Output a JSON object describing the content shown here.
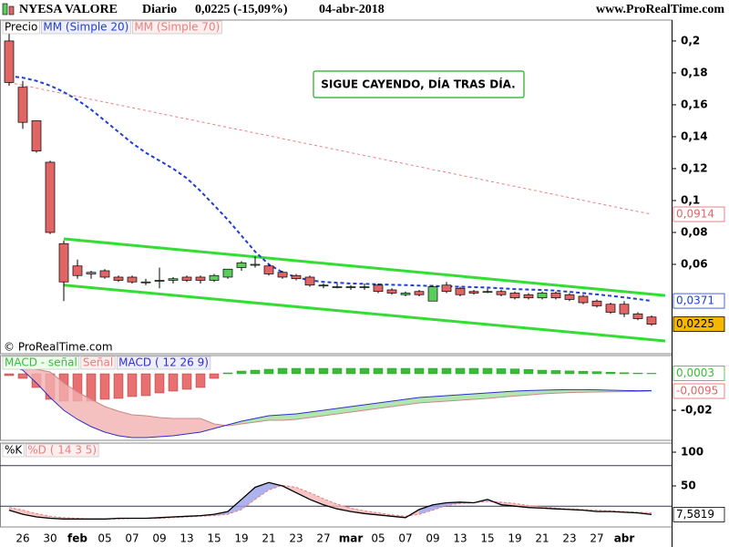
{
  "header": {
    "title": "NYESA VALORE",
    "period": "Diario",
    "quote": "0,0225 (-15,09%)",
    "date": "04-abr-2018",
    "site": "www.ProRealTime.com"
  },
  "copyright": "© ProRealTime.com",
  "chart_data": [
    {
      "type": "candlestick",
      "price_name": "Precio",
      "up_color": "#5ccc5c",
      "down_color": "#e06666",
      "categories": [
        null,
        "26",
        null,
        "30",
        null,
        "feb",
        null,
        "05",
        null,
        "07",
        null,
        "09",
        null,
        "13",
        null,
        "15",
        null,
        "19",
        null,
        "21",
        null,
        "23",
        null,
        "27",
        null,
        "mar",
        null,
        "05",
        null,
        "07",
        null,
        "09",
        null,
        "13",
        null,
        "15",
        null,
        "19",
        null,
        "21",
        null,
        "23",
        null,
        "27",
        null,
        "abr",
        null,
        null
      ],
      "ohlc": [
        [
          0.2,
          0.205,
          0.172,
          0.174
        ],
        [
          0.171,
          0.175,
          0.145,
          0.149
        ],
        [
          0.15,
          0.15,
          0.13,
          0.131
        ],
        [
          0.124,
          0.125,
          0.079,
          0.08
        ],
        [
          0.073,
          0.075,
          0.037,
          0.049
        ],
        [
          0.059,
          0.063,
          0.051,
          0.053
        ],
        [
          0.054,
          0.056,
          0.051,
          0.055
        ],
        [
          0.056,
          0.057,
          0.051,
          0.052
        ],
        [
          0.052,
          0.053,
          0.049,
          0.05
        ],
        [
          0.052,
          0.053,
          0.048,
          0.049
        ],
        [
          0.049,
          0.051,
          0.047,
          0.049
        ],
        [
          0.05,
          0.058,
          0.045,
          0.05
        ],
        [
          0.05,
          0.052,
          0.048,
          0.051
        ],
        [
          0.052,
          0.053,
          0.049,
          0.05
        ],
        [
          0.052,
          0.053,
          0.048,
          0.05
        ],
        [
          0.05,
          0.054,
          0.049,
          0.053
        ],
        [
          0.052,
          0.057,
          0.051,
          0.057
        ],
        [
          0.058,
          0.062,
          0.056,
          0.061
        ],
        [
          0.06,
          0.065,
          0.058,
          0.06
        ],
        [
          0.059,
          0.06,
          0.053,
          0.054
        ],
        [
          0.055,
          0.056,
          0.051,
          0.052
        ],
        [
          0.053,
          0.054,
          0.05,
          0.051
        ],
        [
          0.052,
          0.053,
          0.046,
          0.047
        ],
        [
          0.047,
          0.048,
          0.045,
          0.047
        ],
        [
          0.046,
          0.048,
          0.045,
          0.046
        ],
        [
          0.046,
          0.047,
          0.044,
          0.046
        ],
        [
          0.046,
          0.048,
          0.044,
          0.046
        ],
        [
          0.047,
          0.048,
          0.042,
          0.043
        ],
        [
          0.044,
          0.045,
          0.041,
          0.042
        ],
        [
          0.041,
          0.043,
          0.04,
          0.042
        ],
        [
          0.043,
          0.044,
          0.04,
          0.041
        ],
        [
          0.037,
          0.047,
          0.037,
          0.046
        ],
        [
          0.047,
          0.049,
          0.042,
          0.043
        ],
        [
          0.045,
          0.046,
          0.04,
          0.041
        ],
        [
          0.043,
          0.044,
          0.041,
          0.042
        ],
        [
          0.043,
          0.045,
          0.042,
          0.043
        ],
        [
          0.043,
          0.044,
          0.04,
          0.041
        ],
        [
          0.042,
          0.043,
          0.038,
          0.039
        ],
        [
          0.041,
          0.042,
          0.038,
          0.039
        ],
        [
          0.039,
          0.043,
          0.038,
          0.042
        ],
        [
          0.042,
          0.043,
          0.038,
          0.039
        ],
        [
          0.041,
          0.042,
          0.037,
          0.038
        ],
        [
          0.04,
          0.041,
          0.035,
          0.036
        ],
        [
          0.037,
          0.038,
          0.033,
          0.034
        ],
        [
          0.035,
          0.036,
          0.029,
          0.03
        ],
        [
          0.035,
          0.037,
          0.027,
          0.029
        ],
        [
          0.029,
          0.03,
          0.025,
          0.026
        ],
        [
          0.027,
          0.028,
          0.0215,
          0.0225
        ]
      ],
      "series": [
        {
          "name": "MM (Simple 20)",
          "color": "#1f3fd0",
          "values": [
            0.178,
            0.177,
            0.175,
            0.172,
            0.168,
            0.163,
            0.157,
            0.15,
            0.143,
            0.136,
            0.13,
            0.125,
            0.12,
            0.114,
            0.106,
            0.097,
            0.088,
            0.078,
            0.068,
            0.06,
            0.055,
            0.052,
            0.05,
            0.049,
            0.0485,
            0.048,
            0.0478,
            0.0475,
            0.0472,
            0.047,
            0.0467,
            0.0465,
            0.0462,
            0.046,
            0.0457,
            0.0455,
            0.045,
            0.0445,
            0.0442,
            0.044,
            0.0435,
            0.0428,
            0.042,
            0.0412,
            0.0403,
            0.0393,
            0.0383,
            0.0371
          ]
        },
        {
          "name": "MM (Simple 70)",
          "color": "#e88080",
          "values": [
            0.174,
            0.1722,
            0.1705,
            0.1687,
            0.167,
            0.1652,
            0.1634,
            0.1617,
            0.1599,
            0.1582,
            0.1564,
            0.1546,
            0.1529,
            0.1511,
            0.1494,
            0.1476,
            0.1458,
            0.1441,
            0.1423,
            0.1406,
            0.1388,
            0.137,
            0.1353,
            0.1335,
            0.1318,
            0.13,
            0.1282,
            0.1265,
            0.1247,
            0.123,
            0.1212,
            0.1194,
            0.1177,
            0.1159,
            0.1142,
            0.1124,
            0.1106,
            0.1089,
            0.1071,
            0.1054,
            0.1036,
            0.1018,
            0.1001,
            0.0983,
            0.0966,
            0.0948,
            0.0931,
            0.0914
          ]
        }
      ],
      "trendlines": [
        {
          "color": "#33dd33",
          "x": [
            4,
            48
          ],
          "values": [
            0.076,
            0.0405
          ]
        },
        {
          "color": "#33dd33",
          "x": [
            4,
            48
          ],
          "values": [
            0.047,
            0.012
          ]
        }
      ],
      "annotation": "SIGUE CAYENDO, DÍA TRAS DÍA.",
      "ylim": [
        0.004,
        0.2131
      ],
      "yticks": [
        {
          "value": 0.2,
          "label": "0,2"
        },
        {
          "value": 0.18,
          "label": "0,18"
        },
        {
          "value": 0.16,
          "label": "0,16"
        },
        {
          "value": 0.14,
          "label": "0,14"
        },
        {
          "value": 0.12,
          "label": "0,12"
        },
        {
          "value": 0.1,
          "label": "0,1"
        },
        {
          "value": 0.08,
          "label": "0,08"
        },
        {
          "value": 0.06,
          "label": "0,06"
        }
      ],
      "price_tags": [
        {
          "value": 0.0914,
          "label": "0,0914",
          "color": "#e06666",
          "bg": "#ffffff"
        },
        {
          "value": 0.0371,
          "label": "0,0371",
          "color": "#1f3fd0",
          "bg": "#ffffff"
        },
        {
          "value": 0.0225,
          "label": "0,0225",
          "color": "#000000",
          "bg": "#f5b800"
        }
      ]
    },
    {
      "type": "macd",
      "series": [
        {
          "name": "MACD - señal",
          "color": "#3cb83c",
          "neg_color": "#e87070",
          "values": [
            -0.001,
            -0.0025,
            -0.0075,
            -0.014,
            -0.015,
            -0.015,
            -0.015,
            -0.014,
            -0.0135,
            -0.0125,
            -0.012,
            -0.0105,
            -0.0095,
            -0.0085,
            -0.0075,
            -0.0025,
            0.0005,
            0.0015,
            0.002,
            0.0025,
            0.003,
            0.003,
            0.003,
            0.003,
            0.003,
            0.003,
            0.003,
            0.003,
            0.003,
            0.003,
            0.003,
            0.003,
            0.003,
            0.003,
            0.003,
            0.003,
            0.0028,
            0.0027,
            0.0024,
            0.002,
            0.0018,
            0.0016,
            0.0014,
            0.0012,
            0.0009,
            0.0006,
            0.0004,
            0.0003
          ]
        },
        {
          "name": "Señal",
          "color": "#e88080",
          "values": [
            0.006,
            0.0045,
            0.0025,
            0.001,
            -0.005,
            -0.01,
            -0.014,
            -0.018,
            -0.0205,
            -0.0225,
            -0.023,
            -0.024,
            -0.0245,
            -0.0245,
            -0.0245,
            -0.0275,
            -0.0285,
            -0.0275,
            -0.0265,
            -0.0255,
            -0.0255,
            -0.025,
            -0.024,
            -0.023,
            -0.022,
            -0.021,
            -0.02,
            -0.019,
            -0.018,
            -0.017,
            -0.016,
            -0.0155,
            -0.015,
            -0.0145,
            -0.014,
            -0.0135,
            -0.0128,
            -0.0122,
            -0.0116,
            -0.011,
            -0.0106,
            -0.0103,
            -0.0101,
            -0.01,
            -0.0099,
            -0.0098,
            -0.0097,
            -0.0095
          ]
        },
        {
          "name": "MACD ( 12 26 9)",
          "color": "#3030c8",
          "values": [
            0.005,
            0.002,
            -0.005,
            -0.013,
            -0.02,
            -0.025,
            -0.029,
            -0.032,
            -0.034,
            -0.035,
            -0.035,
            -0.0345,
            -0.034,
            -0.033,
            -0.032,
            -0.03,
            -0.028,
            -0.026,
            -0.0245,
            -0.023,
            -0.0225,
            -0.022,
            -0.021,
            -0.02,
            -0.019,
            -0.018,
            -0.017,
            -0.016,
            -0.015,
            -0.014,
            -0.013,
            -0.0125,
            -0.012,
            -0.0115,
            -0.011,
            -0.0105,
            -0.01,
            -0.0095,
            -0.0092,
            -0.009,
            -0.0088,
            -0.0087,
            -0.0087,
            -0.0088,
            -0.009,
            -0.0092,
            -0.0093,
            -0.0092
          ]
        }
      ],
      "ylim": [
        -0.0365,
        0.01
      ],
      "yticks": [
        {
          "value": -0.02,
          "label": "-0,02"
        }
      ],
      "price_tags": [
        {
          "value": 0.0003,
          "label": "0,0003",
          "color": "#3cb83c",
          "bg": "#ffffff"
        },
        {
          "value": -0.0095,
          "label": "-0,0095",
          "color": "#e06666",
          "bg": "#ffffff"
        }
      ]
    },
    {
      "type": "stochastic",
      "series": [
        {
          "name": "%K",
          "color": "#000000",
          "values": [
            14,
            8,
            4,
            2,
            1,
            1,
            1,
            1,
            2,
            2,
            2,
            3,
            4,
            5,
            6,
            8,
            12,
            30,
            48,
            55,
            50,
            40,
            30,
            22,
            16,
            12,
            9,
            7,
            5,
            3,
            15,
            22,
            25,
            26,
            25,
            30,
            22,
            20,
            18,
            17,
            16,
            15,
            14,
            12,
            12,
            11,
            10,
            7.5819
          ]
        },
        {
          "name": "%D ( 14 3 5)",
          "color": "#e88080",
          "values": [
            18,
            14,
            9,
            5,
            3,
            2,
            1,
            1,
            1,
            2,
            2,
            2,
            3,
            4,
            5,
            6,
            8,
            15,
            30,
            44,
            51,
            48,
            40,
            31,
            23,
            17,
            13,
            10,
            7,
            5,
            8,
            14,
            21,
            24,
            25,
            27,
            26,
            24,
            21,
            19,
            17,
            16,
            15,
            14,
            13,
            12,
            11,
            10
          ]
        }
      ],
      "levels": [
        80,
        20
      ],
      "ylim": [
        -10.8,
        113.5
      ],
      "yticks": [
        100,
        50
      ],
      "price_tags": [
        {
          "value": 7.5819,
          "label": "7,5819",
          "color": "#000000",
          "bg": "#ffffff"
        }
      ]
    }
  ]
}
